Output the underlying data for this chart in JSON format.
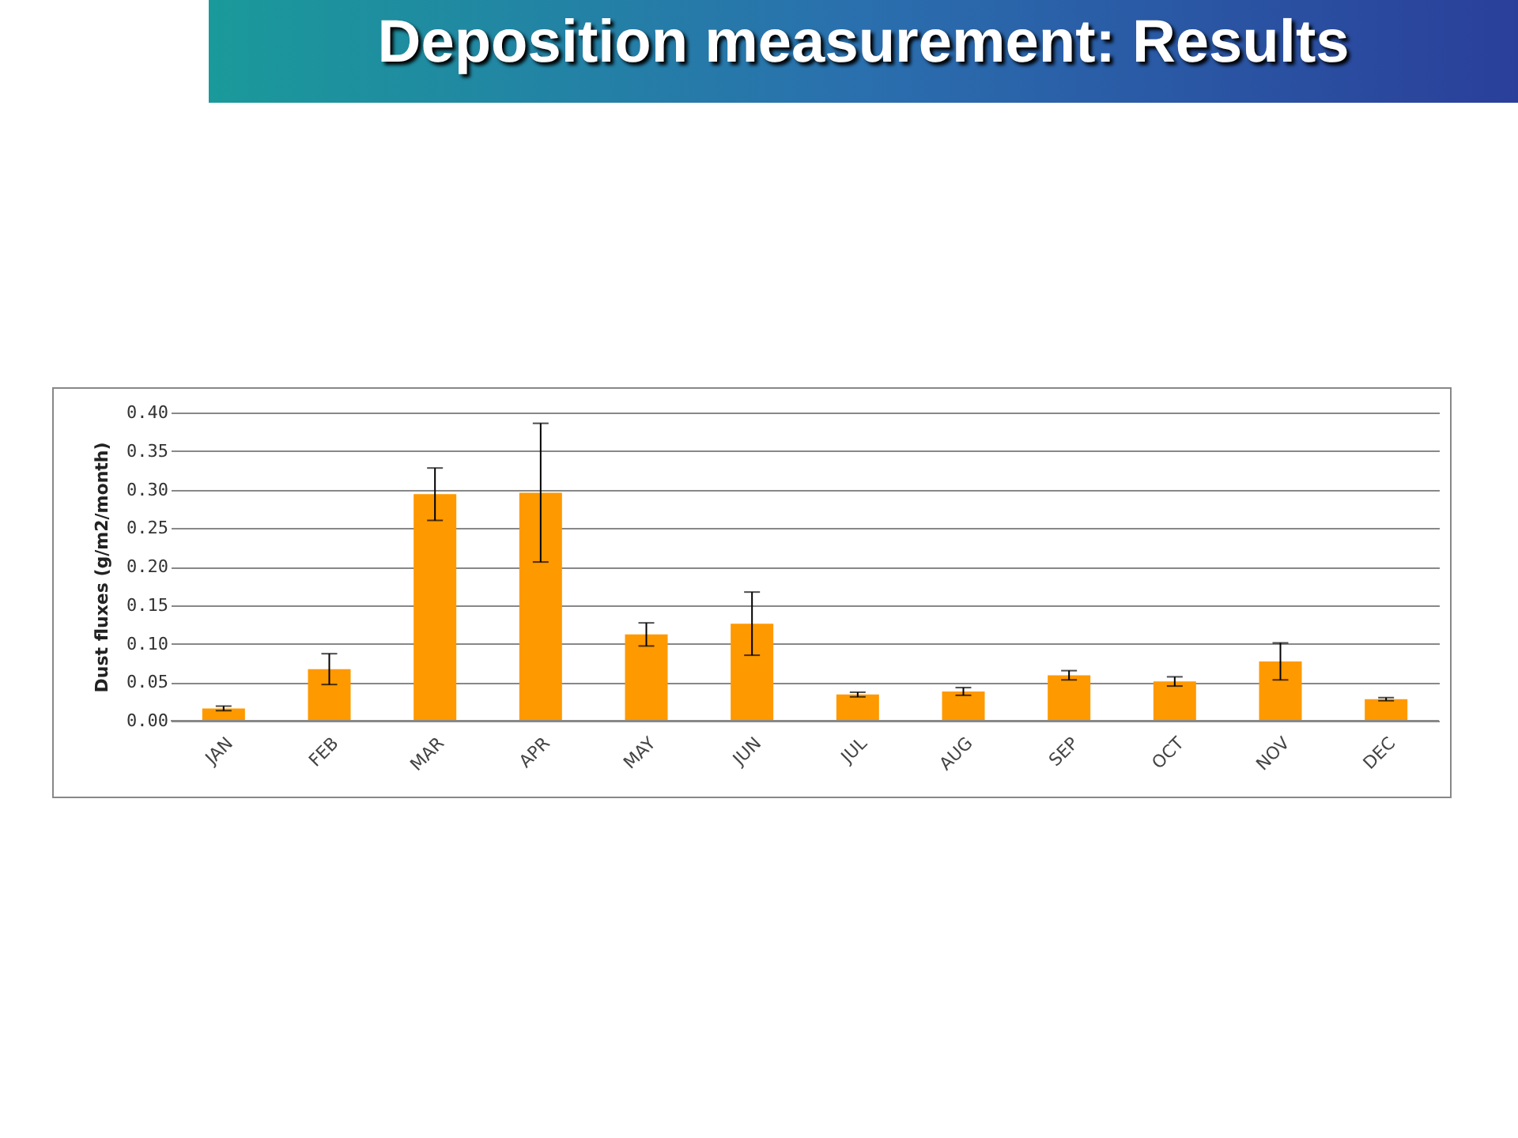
{
  "chart_data": {
    "type": "bar",
    "title": "Deposition measurement: Results",
    "ylabel": "Dust fluxes (g/m2/month)",
    "categories": [
      "JAN",
      "FEB",
      "MAR",
      "APR",
      "MAY",
      "JUN",
      "JUL",
      "AUG",
      "SEP",
      "OCT",
      "NOV",
      "DEC"
    ],
    "values": [
      0.016,
      0.067,
      0.294,
      0.296,
      0.112,
      0.126,
      0.034,
      0.038,
      0.059,
      0.051,
      0.077,
      0.028
    ],
    "errors": [
      0.003,
      0.02,
      0.034,
      0.09,
      0.015,
      0.041,
      0.003,
      0.005,
      0.006,
      0.006,
      0.024,
      0.002
    ],
    "color": "#ff9900",
    "ylim": [
      0,
      0.4
    ],
    "yticks": [
      {
        "value": 0,
        "label": "0.00"
      },
      {
        "value": 0.05,
        "label": "0.05"
      },
      {
        "value": 0.1,
        "label": "0.10"
      },
      {
        "value": 0.15,
        "label": "0.15"
      },
      {
        "value": 0.2,
        "label": "0.20"
      },
      {
        "value": 0.25,
        "label": "0.25"
      },
      {
        "value": 0.3,
        "label": "0.30"
      },
      {
        "value": 0.35,
        "label": "0.35"
      },
      {
        "value": 0.4,
        "label": "0.40"
      }
    ],
    "grid": "y"
  }
}
